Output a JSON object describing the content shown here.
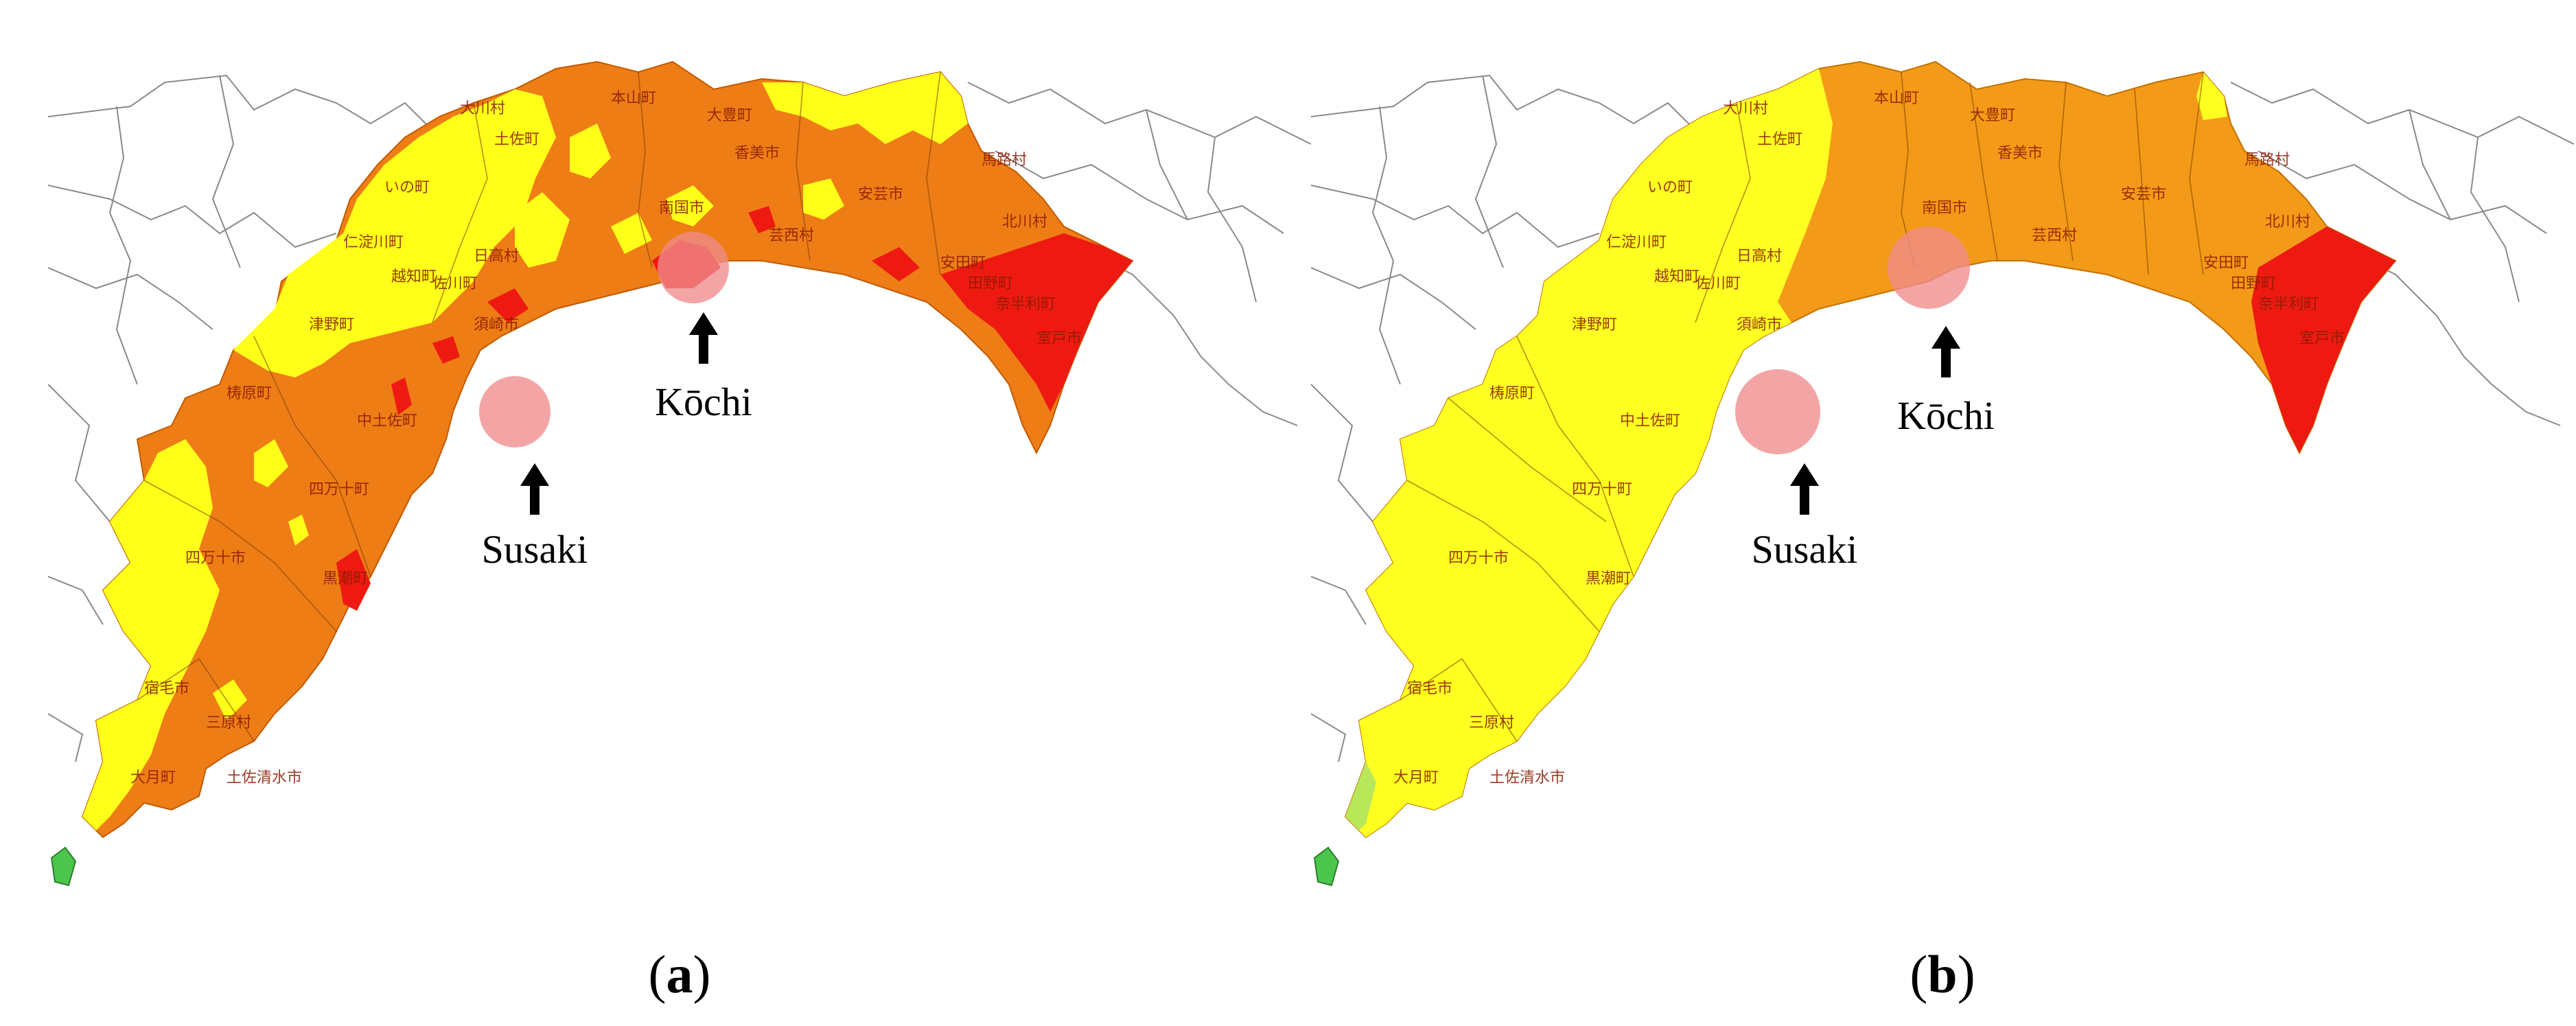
{
  "panels": [
    {
      "caption_open": "(",
      "caption_letter": "a",
      "caption_close": ")",
      "labels": {
        "city1": "Kōchi",
        "city2": "Susaki"
      },
      "colors": {
        "base": "#ee7d16",
        "low": "#ffff1a",
        "high": "#ee1a12"
      }
    },
    {
      "caption_open": "(",
      "caption_letter": "b",
      "caption_close": ")",
      "labels": {
        "city1": "Kōchi",
        "city2": "Susaki"
      },
      "colors": {
        "base": "#f39a18",
        "low": "#ffff22",
        "high": "#ee1a12"
      }
    }
  ],
  "legend_colors": {
    "yellow": "#ffff1a",
    "orange": "#ee7d16",
    "red": "#ee1a12",
    "green": "#4cc54c",
    "highlight": "#f08c8c"
  },
  "municipality_labels": [
    "大川村",
    "本山町",
    "大豊町",
    "土佐町",
    "香美市",
    "いの町",
    "南国市",
    "安芸市",
    "芸西村",
    "馬路村",
    "北川村",
    "仁淀川町",
    "日高村",
    "佐川町",
    "越知町",
    "須崎市",
    "津野町",
    "梼原町",
    "中土佐町",
    "四万十町",
    "黒潮町",
    "四万十市",
    "宿毛市",
    "三原村",
    "土佐清水市",
    "大月町",
    "室戸市",
    "安田町",
    "田野町",
    "奈半利町"
  ]
}
